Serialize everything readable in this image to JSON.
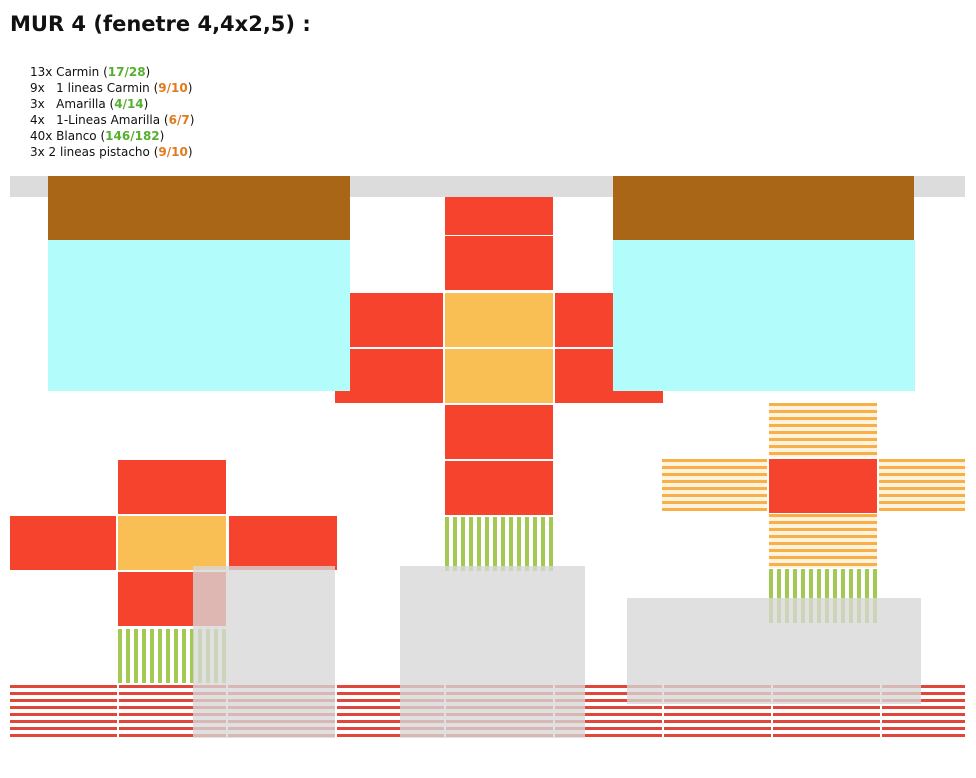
{
  "title": "MUR 4 (fenetre 4,4x2,5) :",
  "items": [
    {
      "prefix": "13x Carmin (",
      "count": "17/28",
      "status": "ok",
      "suffix": ")"
    },
    {
      "prefix": "9x   1 lineas Carmin (",
      "count": "9/10",
      "status": "low",
      "suffix": ")"
    },
    {
      "prefix": "3x   Amarilla (",
      "count": "4/14",
      "status": "ok",
      "suffix": ")"
    },
    {
      "prefix": "4x   1-Lineas Amarilla (",
      "count": "6/7",
      "status": "low",
      "suffix": ")"
    },
    {
      "prefix": "40x Blanco (",
      "count": "146/182",
      "status": "ok",
      "suffix": ")"
    },
    {
      "prefix": "3x 2 lineas pistacho (",
      "count": "9/10",
      "status": "low",
      "suffix": ")"
    }
  ],
  "colors": {
    "ok": "#56b030",
    "low": "#e07a1d",
    "carmin": "#f5432d",
    "amarilla": "#f9bf55",
    "pistacho": "#a3c853",
    "window_frame": "#a96616",
    "window_glass": "#b2fcfb",
    "furniture": "#dcdcdc"
  }
}
